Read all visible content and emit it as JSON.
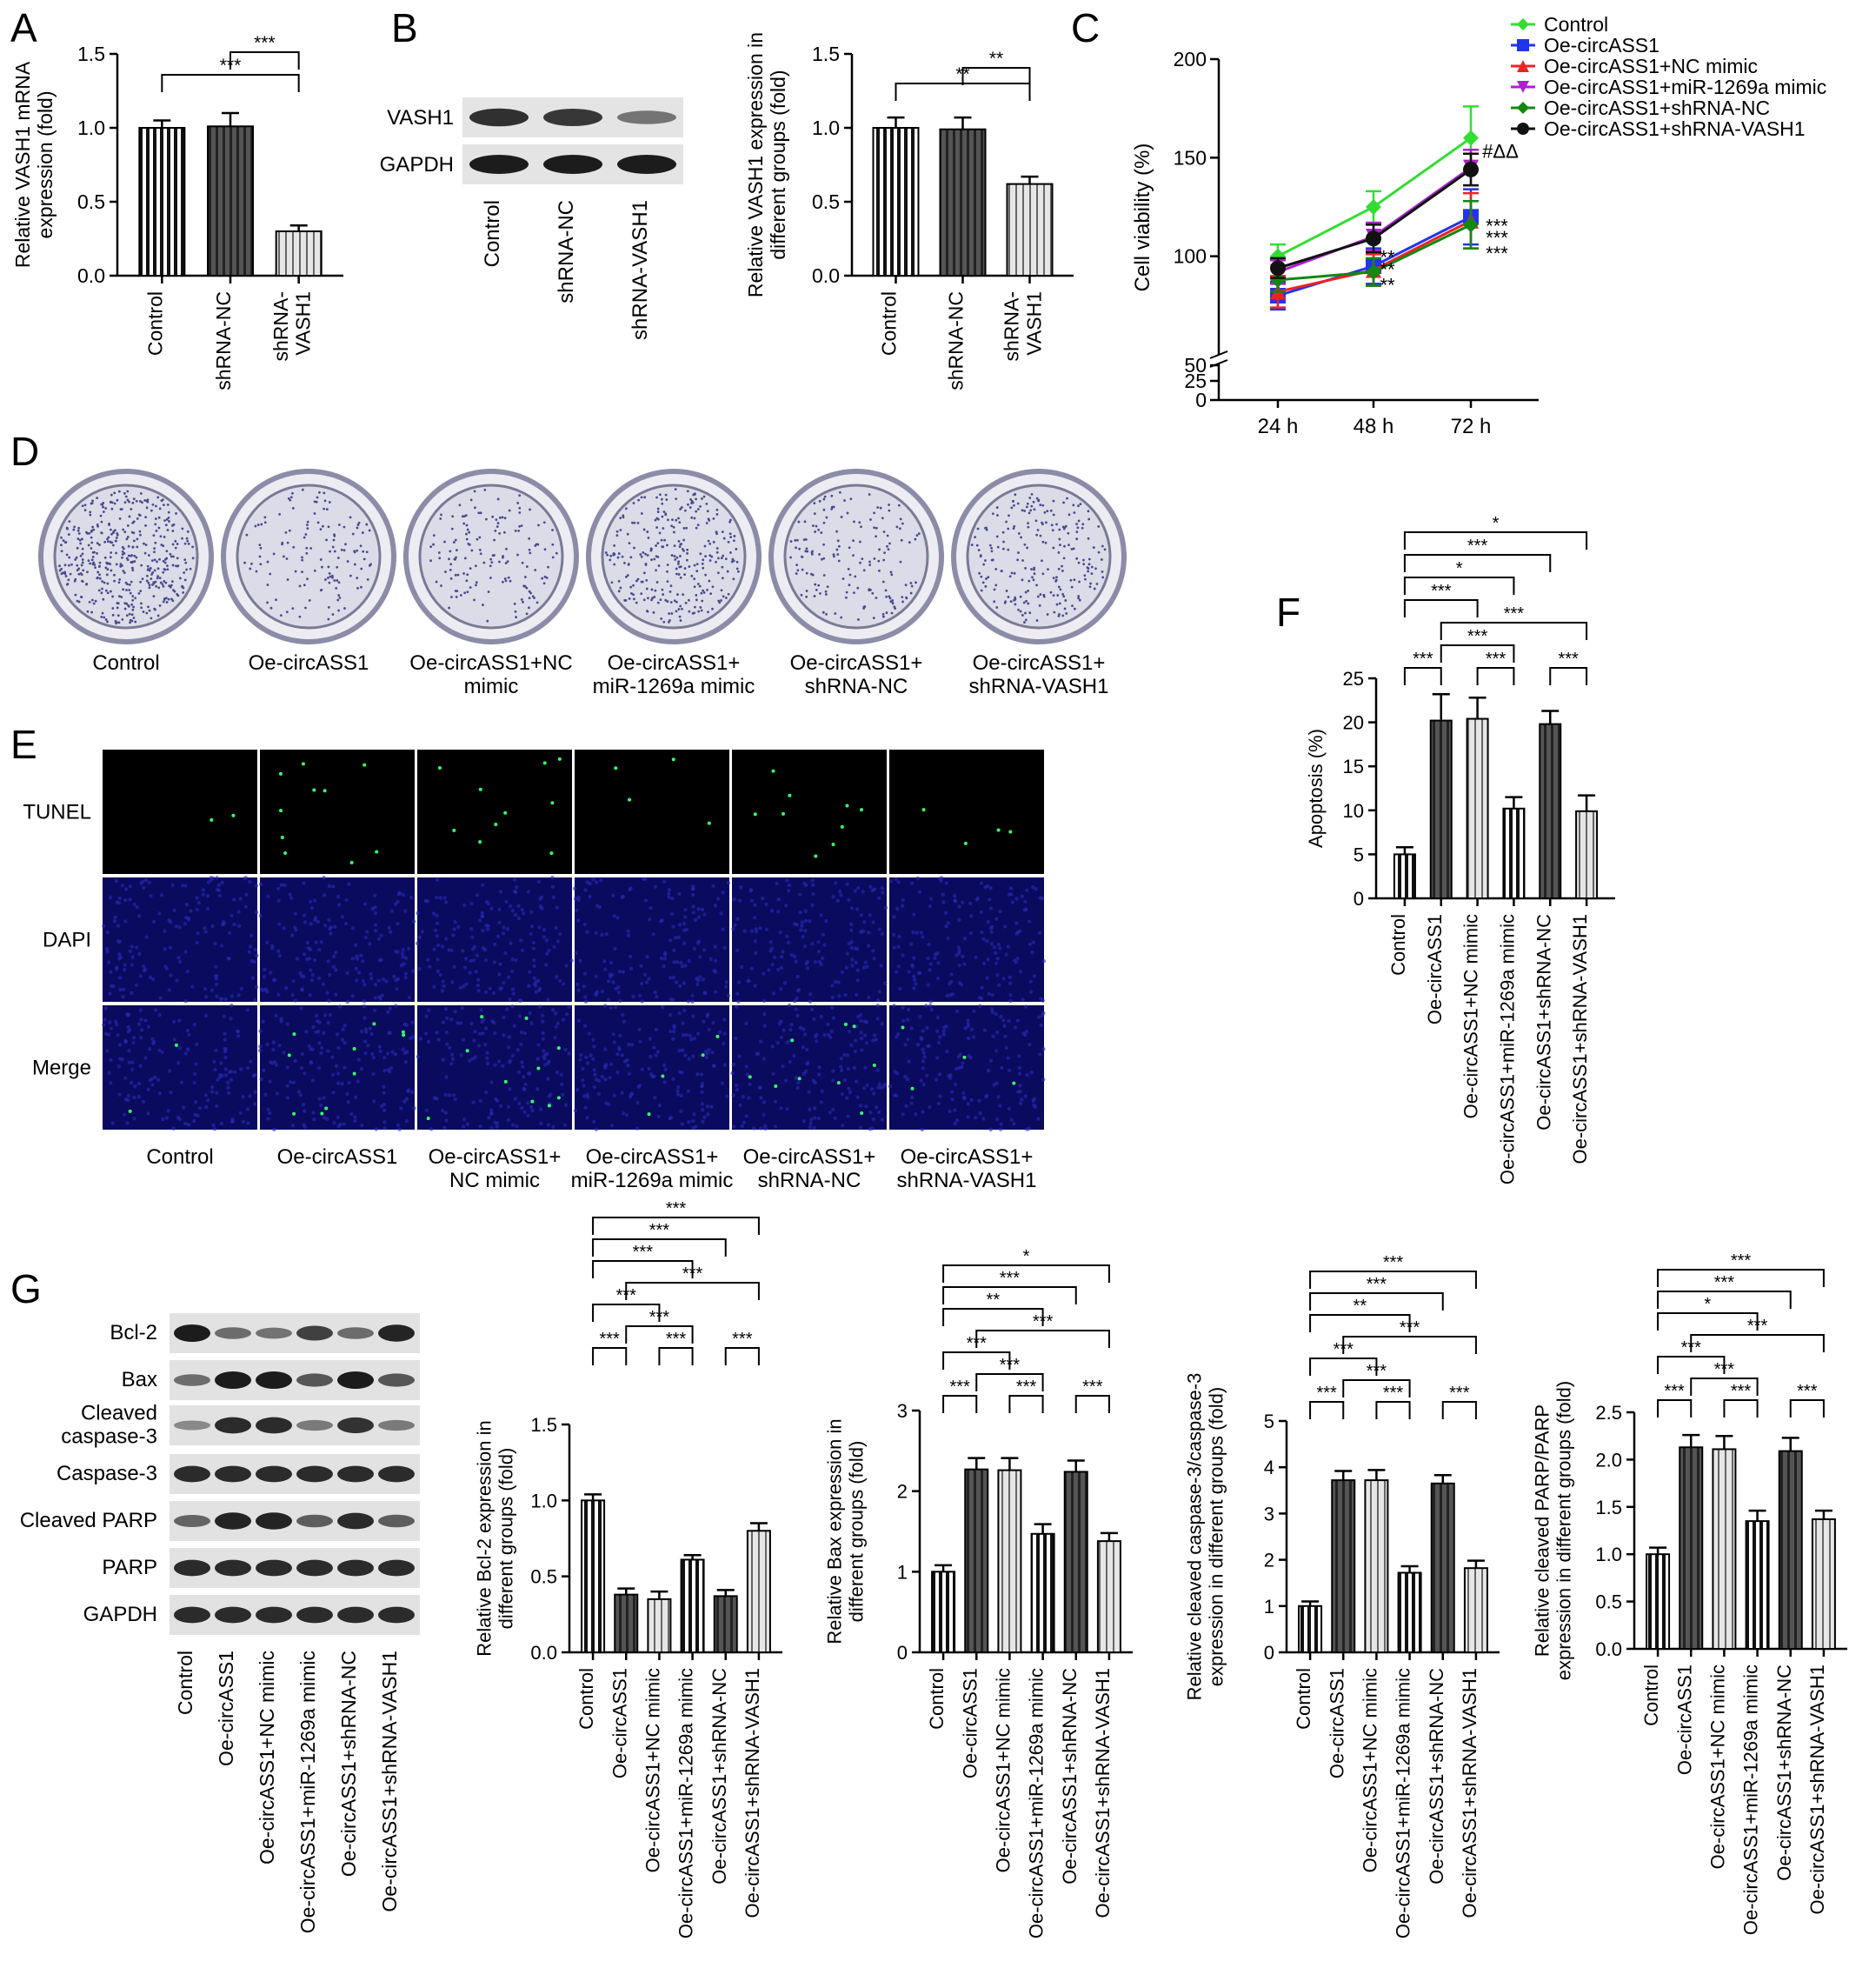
{
  "panels": {
    "A": {
      "letter": "A",
      "chart_data": {
        "type": "bar",
        "categories": [
          "Control",
          "shRNA-NC",
          "shRNA-\nVASH1"
        ],
        "values": [
          1.0,
          1.01,
          0.3
        ],
        "errors": [
          0.05,
          0.09,
          0.04
        ],
        "ylabel": "Relative VASH1 mRNA\nexpression (fold)",
        "ylim": [
          0,
          1.5
        ],
        "yticks": [
          0.0,
          0.5,
          1.0,
          1.5
        ],
        "ytick_labels": [
          "0.0",
          "0.5",
          "1.0",
          "1.5"
        ],
        "significance": [
          {
            "from": 0,
            "to": 2,
            "label": "***",
            "level": 0
          },
          {
            "from": 1,
            "to": 2,
            "label": "***",
            "level": 1
          }
        ]
      }
    },
    "B": {
      "letter": "B",
      "blot_labels": [
        "VASH1",
        "GAPDH"
      ],
      "lanes": [
        "Control",
        "shRNA-NC",
        "shRNA-VASH1"
      ],
      "chart_data": {
        "type": "bar",
        "categories": [
          "Control",
          "shRNA-NC",
          "shRNA-\nVASH1"
        ],
        "values": [
          1.0,
          0.99,
          0.62
        ],
        "errors": [
          0.07,
          0.08,
          0.05
        ],
        "ylabel": "Relative VASH1 expression in\ndifferent groups (fold)",
        "ylim": [
          0,
          1.5
        ],
        "yticks": [
          0.0,
          0.5,
          1.0,
          1.5
        ],
        "ytick_labels": [
          "0.0",
          "0.5",
          "1.0",
          "1.5"
        ],
        "significance": [
          {
            "from": 0,
            "to": 2,
            "label": "**",
            "level": 0
          },
          {
            "from": 1,
            "to": 2,
            "label": "**",
            "level": 1
          }
        ]
      }
    },
    "C": {
      "letter": "C",
      "chart_data": {
        "type": "line",
        "x": [
          "24 h",
          "48 h",
          "72 h"
        ],
        "ylabel": "Cell viability (%)",
        "ylim": [
          0,
          200
        ],
        "axis_break": [
          25,
          50
        ],
        "yticks": [
          0,
          25,
          50,
          100,
          150,
          200
        ],
        "ytick_labels": [
          "0",
          "25",
          "50",
          "100",
          "150",
          "200"
        ],
        "legend_placement": "top-right",
        "series": [
          {
            "name": "Control",
            "values": [
              100,
              125,
              160
            ],
            "errors": [
              6,
              8,
              16
            ],
            "color": "#33dd33",
            "marker": "diamond"
          },
          {
            "name": "Oe-circASS1",
            "values": [
              80,
              95,
              120
            ],
            "errors": [
              7,
              9,
              14
            ],
            "color": "#2233ee",
            "marker": "square"
          },
          {
            "name": "Oe-circASS1+NC mimic",
            "values": [
              82,
              93,
              118
            ],
            "errors": [
              8,
              8,
              14
            ],
            "color": "#ee2222",
            "marker": "triangle"
          },
          {
            "name": "Oe-circASS1+miR-1269a mimic",
            "values": [
              92,
              110,
              145
            ],
            "errors": [
              6,
              7,
              9
            ],
            "color": "#aa22cc",
            "marker": "triangle-down"
          },
          {
            "name": "Oe-circASS1+shRNA-NC",
            "values": [
              88,
              92,
              116
            ],
            "errors": [
              6,
              7,
              12
            ],
            "color": "#118811",
            "marker": "diamond"
          },
          {
            "name": "Oe-circASS1+shRNA-VASH1",
            "values": [
              94,
              109,
              144
            ],
            "errors": [
              5,
              7,
              8
            ],
            "color": "#111111",
            "marker": "circle"
          }
        ],
        "annotations": [
          {
            "x_index": 1,
            "y": 82,
            "label": "**"
          },
          {
            "x_index": 1,
            "y": 90,
            "label": "**"
          },
          {
            "x_index": 1,
            "y": 96,
            "label": "**"
          },
          {
            "x_index": 2,
            "y": 112,
            "label": "***"
          },
          {
            "x_index": 2,
            "y": 98,
            "label": "***"
          },
          {
            "x_index": 2,
            "y": 106,
            "label": "***"
          },
          {
            "x_index": 2,
            "y": 150,
            "label": "#ΔΔ"
          }
        ]
      }
    },
    "D": {
      "letter": "D",
      "captions": [
        "Control",
        "Oe-circASS1",
        "Oe-circASS1+NC\nmimic",
        "Oe-circASS1+\nmiR-1269a mimic",
        "Oe-circASS1+\nshRNA-NC",
        "Oe-circASS1+\nshRNA-VASH1"
      ],
      "colony_density": [
        0.9,
        0.18,
        0.22,
        0.55,
        0.25,
        0.4
      ]
    },
    "E": {
      "letter": "E",
      "row_labels": [
        "TUNEL",
        "DAPI",
        "Merge"
      ],
      "captions": [
        "Control",
        "Oe-circASS1",
        "Oe-circASS1+\nNC mimic",
        "Oe-circASS1+\nmiR-1269a mimic",
        "Oe-circASS1+\nshRNA-NC",
        "Oe-circASS1+\nshRNA-VASH1"
      ],
      "tunel_spots": [
        2,
        10,
        10,
        4,
        9,
        4
      ]
    },
    "F": {
      "letter": "F",
      "chart_data": {
        "type": "bar",
        "categories": [
          "Control",
          "Oe-circASS1",
          "Oe-circASS1+NC mimic",
          "Oe-circASS1+miR-1269a mimic",
          "Oe-circASS1+shRNA-NC",
          "Oe-circASS1+shRNA-VASH1"
        ],
        "values": [
          5,
          20.2,
          20.4,
          10.2,
          19.8,
          9.9
        ],
        "errors": [
          0.8,
          3.0,
          2.4,
          1.3,
          1.5,
          1.8
        ],
        "ylabel": "Apoptosis (%)",
        "ylim": [
          0,
          25
        ],
        "yticks": [
          0,
          5,
          10,
          15,
          20,
          25
        ],
        "ytick_labels": [
          "0",
          "5",
          "10",
          "15",
          "20",
          "25"
        ],
        "significance": [
          {
            "from": 0,
            "to": 1,
            "label": "***",
            "level": 0
          },
          {
            "from": 1,
            "to": 3,
            "label": "***",
            "level": 1
          },
          {
            "from": 2,
            "to": 3,
            "label": "***",
            "level": 0
          },
          {
            "from": 4,
            "to": 5,
            "label": "***",
            "level": 0
          },
          {
            "from": 1,
            "to": 5,
            "label": "***",
            "level": 2
          },
          {
            "from": 0,
            "to": 2,
            "label": "***",
            "level": 3
          },
          {
            "from": 0,
            "to": 3,
            "label": "*",
            "level": 4
          },
          {
            "from": 0,
            "to": 4,
            "label": "***",
            "level": 5
          },
          {
            "from": 0,
            "to": 5,
            "label": "*",
            "level": 6
          }
        ]
      }
    },
    "G": {
      "letter": "G",
      "blot_labels": [
        "Bcl-2",
        "Bax",
        "Cleaved\ncaspase-3",
        "Caspase-3",
        "Cleaved PARP",
        "PARP",
        "GAPDH"
      ],
      "lanes": [
        "Control",
        "Oe-circASS1",
        "Oe-circASS1+NC mimic",
        "Oe-circASS1+miR-1269a mimic",
        "Oe-circASS1+shRNA-NC",
        "Oe-circASS1+shRNA-VASH1"
      ],
      "band_intensity": [
        [
          1.0,
          0.45,
          0.4,
          0.75,
          0.45,
          0.95
        ],
        [
          0.45,
          1.0,
          1.0,
          0.6,
          1.0,
          0.6
        ],
        [
          0.25,
          0.9,
          0.9,
          0.35,
          0.85,
          0.35
        ],
        [
          0.9,
          0.9,
          0.9,
          0.9,
          0.9,
          0.9
        ],
        [
          0.5,
          0.95,
          0.95,
          0.55,
          0.9,
          0.55
        ],
        [
          0.9,
          0.9,
          0.9,
          0.9,
          0.9,
          0.9
        ],
        [
          0.9,
          0.9,
          0.9,
          0.9,
          0.9,
          0.9
        ]
      ],
      "charts": [
        {
          "type": "bar",
          "categories": [
            "Control",
            "Oe-circASS1",
            "Oe-circASS1+NC mimic",
            "Oe-circASS1+miR-1269a mimic",
            "Oe-circASS1+shRNA-NC",
            "Oe-circASS1+shRNA-VASH1"
          ],
          "values": [
            1.0,
            0.38,
            0.35,
            0.61,
            0.37,
            0.8
          ],
          "errors": [
            0.04,
            0.04,
            0.05,
            0.03,
            0.04,
            0.05
          ],
          "ylabel": "Relative Bcl-2 expression in\ndifferent groups (fold)",
          "ylim": [
            0,
            1.5
          ],
          "yticks": [
            0.0,
            0.5,
            1.0,
            1.5
          ],
          "ytick_labels": [
            "0.0",
            "0.5",
            "1.0",
            "1.5"
          ],
          "significance": [
            {
              "from": 0,
              "to": 1,
              "label": "***",
              "level": 0
            },
            {
              "from": 2,
              "to": 3,
              "label": "***",
              "level": 0
            },
            {
              "from": 4,
              "to": 5,
              "label": "***",
              "level": 0
            },
            {
              "from": 1,
              "to": 3,
              "label": "***",
              "level": 1
            },
            {
              "from": 0,
              "to": 2,
              "label": "***",
              "level": 2
            },
            {
              "from": 1,
              "to": 5,
              "label": "***",
              "level": 3
            },
            {
              "from": 0,
              "to": 3,
              "label": "***",
              "level": 4
            },
            {
              "from": 0,
              "to": 4,
              "label": "***",
              "level": 5
            },
            {
              "from": 0,
              "to": 5,
              "label": "***",
              "level": 6
            }
          ]
        },
        {
          "type": "bar",
          "categories": [
            "Control",
            "Oe-circASS1",
            "Oe-circASS1+NC mimic",
            "Oe-circASS1+miR-1269a mimic",
            "Oe-circASS1+shRNA-NC",
            "Oe-circASS1+shRNA-VASH1"
          ],
          "values": [
            1.0,
            2.27,
            2.26,
            1.47,
            2.24,
            1.38
          ],
          "errors": [
            0.08,
            0.14,
            0.15,
            0.12,
            0.14,
            0.1
          ],
          "ylabel": "Relative Bax expression in\ndifferent groups (fold)",
          "ylim": [
            0,
            3
          ],
          "yticks": [
            0,
            1,
            2,
            3
          ],
          "ytick_labels": [
            "0",
            "1",
            "2",
            "3"
          ],
          "significance": [
            {
              "from": 0,
              "to": 1,
              "label": "***",
              "level": 0
            },
            {
              "from": 2,
              "to": 3,
              "label": "***",
              "level": 0
            },
            {
              "from": 4,
              "to": 5,
              "label": "***",
              "level": 0
            },
            {
              "from": 1,
              "to": 3,
              "label": "***",
              "level": 1
            },
            {
              "from": 0,
              "to": 2,
              "label": "***",
              "level": 2
            },
            {
              "from": 1,
              "to": 5,
              "label": "***",
              "level": 3
            },
            {
              "from": 0,
              "to": 3,
              "label": "**",
              "level": 4
            },
            {
              "from": 0,
              "to": 4,
              "label": "***",
              "level": 5
            },
            {
              "from": 0,
              "to": 5,
              "label": "*",
              "level": 6
            }
          ]
        },
        {
          "type": "bar",
          "categories": [
            "Control",
            "Oe-circASS1",
            "Oe-circASS1+NC mimic",
            "Oe-circASS1+miR-1269a mimic",
            "Oe-circASS1+shRNA-NC",
            "Oe-circASS1+shRNA-VASH1"
          ],
          "values": [
            1.0,
            3.72,
            3.72,
            1.72,
            3.65,
            1.82
          ],
          "errors": [
            0.1,
            0.2,
            0.22,
            0.14,
            0.18,
            0.16
          ],
          "ylabel": "Relative cleaved caspase-3/caspase-3\nexpression in different groups (fold)",
          "ylim": [
            0,
            5
          ],
          "yticks": [
            0,
            1,
            2,
            3,
            4,
            5
          ],
          "ytick_labels": [
            "0",
            "1",
            "2",
            "3",
            "4",
            "5"
          ],
          "significance": [
            {
              "from": 0,
              "to": 1,
              "label": "***",
              "level": 0
            },
            {
              "from": 2,
              "to": 3,
              "label": "***",
              "level": 0
            },
            {
              "from": 4,
              "to": 5,
              "label": "***",
              "level": 0
            },
            {
              "from": 1,
              "to": 3,
              "label": "***",
              "level": 1
            },
            {
              "from": 0,
              "to": 2,
              "label": "***",
              "level": 2
            },
            {
              "from": 1,
              "to": 5,
              "label": "***",
              "level": 3
            },
            {
              "from": 0,
              "to": 3,
              "label": "**",
              "level": 4
            },
            {
              "from": 0,
              "to": 4,
              "label": "***",
              "level": 5
            },
            {
              "from": 0,
              "to": 5,
              "label": "***",
              "level": 6
            }
          ]
        },
        {
          "type": "bar",
          "categories": [
            "Control",
            "Oe-circASS1",
            "Oe-circASS1+NC mimic",
            "Oe-circASS1+miR-1269a mimic",
            "Oe-circASS1+shRNA-NC",
            "Oe-circASS1+shRNA-VASH1"
          ],
          "values": [
            1.0,
            2.13,
            2.11,
            1.35,
            2.09,
            1.37
          ],
          "errors": [
            0.07,
            0.13,
            0.14,
            0.11,
            0.14,
            0.09
          ],
          "ylabel": "Relative cleaved PARP/PARP\nexpression in different groups (fold)",
          "ylim": [
            0,
            2.5
          ],
          "yticks": [
            0.0,
            0.5,
            1.0,
            1.5,
            2.0,
            2.5
          ],
          "ytick_labels": [
            "0.0",
            "0.5",
            "1.0",
            "1.5",
            "2.0",
            "2.5"
          ],
          "significance": [
            {
              "from": 0,
              "to": 1,
              "label": "***",
              "level": 0
            },
            {
              "from": 2,
              "to": 3,
              "label": "***",
              "level": 0
            },
            {
              "from": 4,
              "to": 5,
              "label": "***",
              "level": 0
            },
            {
              "from": 1,
              "to": 3,
              "label": "***",
              "level": 1
            },
            {
              "from": 0,
              "to": 2,
              "label": "***",
              "level": 2
            },
            {
              "from": 1,
              "to": 5,
              "label": "***",
              "level": 3
            },
            {
              "from": 0,
              "to": 3,
              "label": "*",
              "level": 4
            },
            {
              "from": 0,
              "to": 4,
              "label": "***",
              "level": 5
            },
            {
              "from": 0,
              "to": 5,
              "label": "***",
              "level": 6
            }
          ]
        }
      ]
    }
  }
}
